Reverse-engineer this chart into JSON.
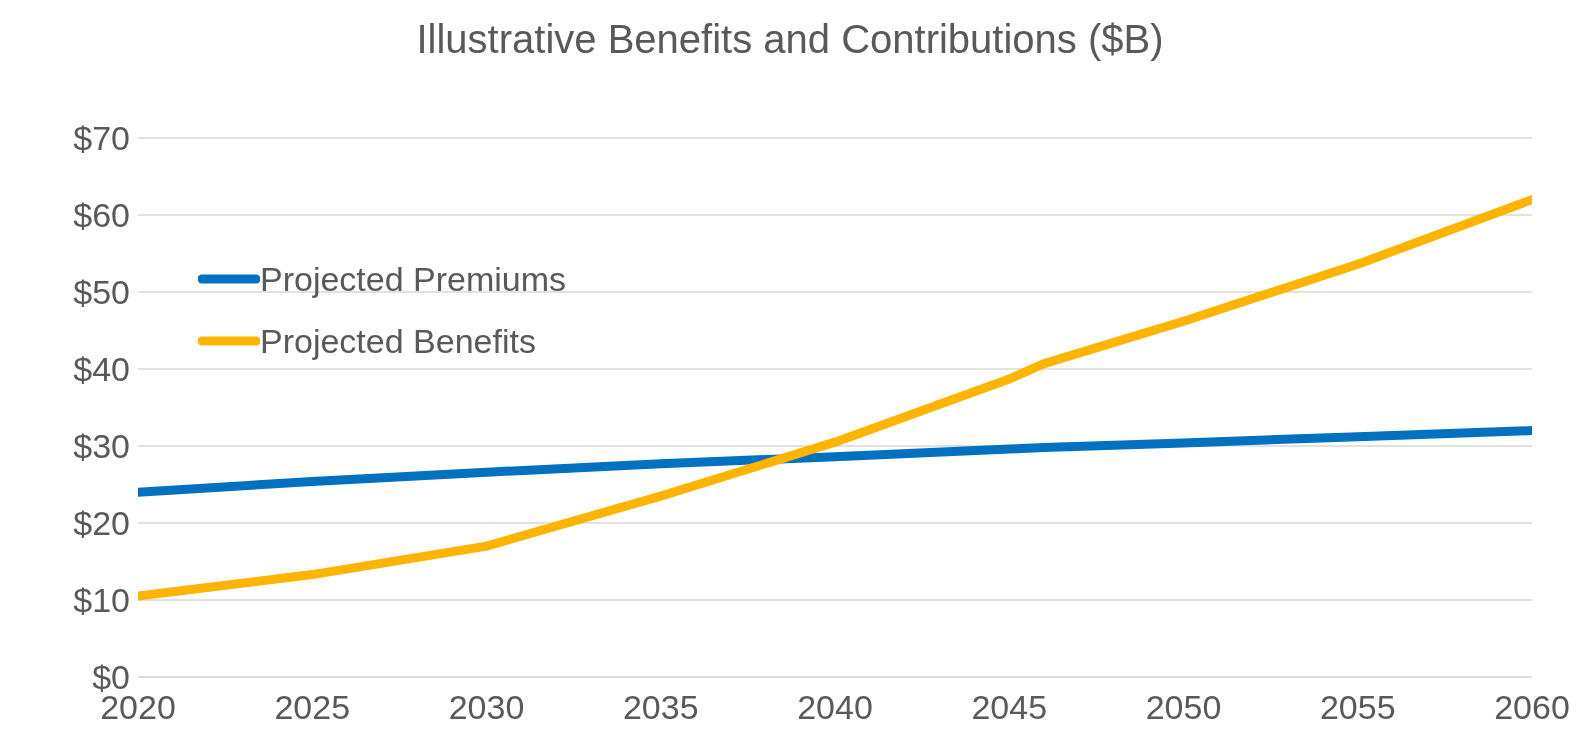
{
  "chart_data": {
    "type": "line",
    "title": "Illustrative Benefits and Contributions ($B)",
    "x": [
      2020,
      2025,
      2030,
      2035,
      2040,
      2045,
      2046,
      2050,
      2055,
      2060
    ],
    "series": [
      {
        "name": "Projected Premiums",
        "color": "#0070c0",
        "values": [
          24,
          25.4,
          26.6,
          27.7,
          28.6,
          29.6,
          29.8,
          30.4,
          31.2,
          32
        ]
      },
      {
        "name": "Projected Benefits",
        "color": "#ffb400",
        "values": [
          10.5,
          13.3,
          17,
          23.5,
          30.5,
          38.7,
          40.7,
          46.2,
          53.6,
          62
        ]
      }
    ],
    "xlim": [
      2020,
      2060
    ],
    "xticks": [
      2020,
      2025,
      2030,
      2035,
      2040,
      2045,
      2050,
      2055,
      2060
    ],
    "ylim": [
      0,
      70
    ],
    "yticks": [
      {
        "value": 0,
        "label": "$0"
      },
      {
        "value": 10,
        "label": "$10"
      },
      {
        "value": 20,
        "label": "$20"
      },
      {
        "value": 30,
        "label": "$30"
      },
      {
        "value": 40,
        "label": "$40"
      },
      {
        "value": 50,
        "label": "$50"
      },
      {
        "value": 60,
        "label": "$60"
      },
      {
        "value": 70,
        "label": "$70"
      }
    ],
    "grid": "y",
    "legend": "top left",
    "marker": "none",
    "line_style": "solid"
  }
}
